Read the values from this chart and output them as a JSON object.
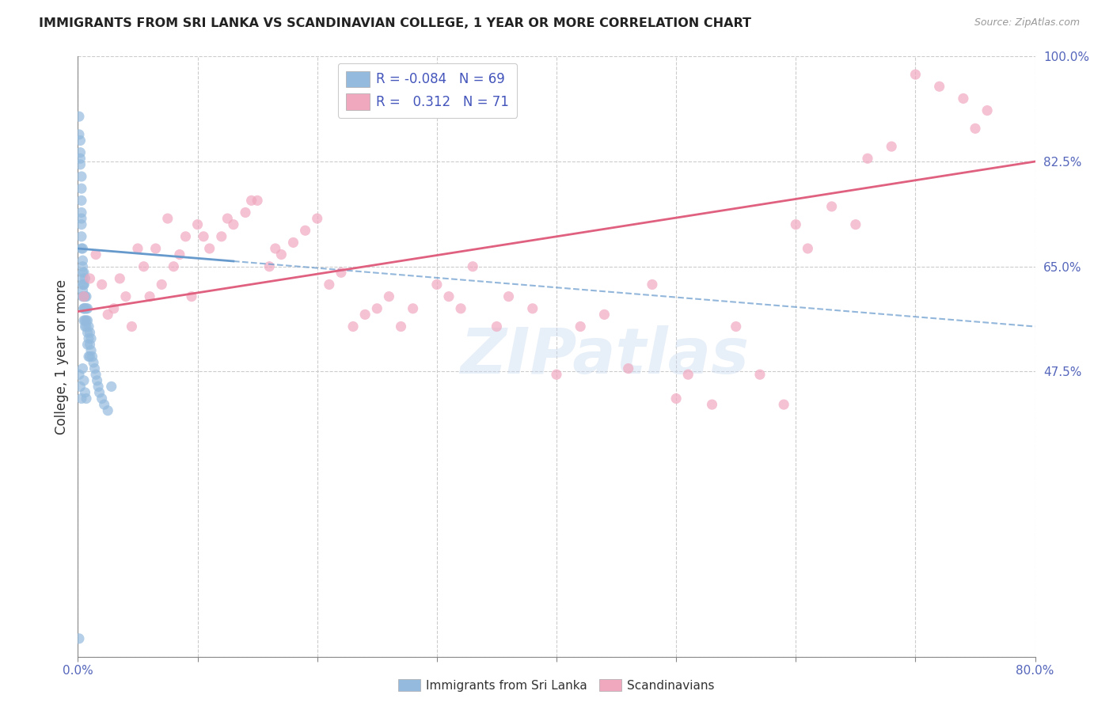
{
  "title": "IMMIGRANTS FROM SRI LANKA VS SCANDINAVIAN COLLEGE, 1 YEAR OR MORE CORRELATION CHART",
  "source": "Source: ZipAtlas.com",
  "ylabel": "College, 1 year or more",
  "xlim": [
    0.0,
    0.8
  ],
  "ylim": [
    0.0,
    1.0
  ],
  "xtick_values": [
    0.0,
    0.1,
    0.2,
    0.3,
    0.4,
    0.5,
    0.6,
    0.7,
    0.8
  ],
  "xticklabels": [
    "0.0%",
    "",
    "",
    "",
    "",
    "",
    "",
    "",
    "80.0%"
  ],
  "ytick_values": [
    0.0,
    0.475,
    0.65,
    0.825,
    1.0
  ],
  "ytick_labels": [
    "",
    "47.5%",
    "65.0%",
    "82.5%",
    "100.0%"
  ],
  "watermark": "ZIPatlas",
  "sri_lanka_color": "#94bbde",
  "scandinavian_color": "#f0a8bf",
  "trend_sri_lanka_color": "#6699cc",
  "trend_scandinavian_color": "#e06080",
  "background_color": "#ffffff",
  "grid_color": "#cccccc",
  "legend_sl_label": "R = -0.084   N = 69",
  "legend_sc_label": "R =   0.312   N = 71",
  "legend_text_color": "#4455bb",
  "tick_color": "#5566bb",
  "bottom_label_sl": "Immigrants from Sri Lanka",
  "bottom_label_sc": "Scandinavians",
  "sl_x": [
    0.001,
    0.001,
    0.002,
    0.002,
    0.002,
    0.002,
    0.003,
    0.003,
    0.003,
    0.003,
    0.003,
    0.003,
    0.003,
    0.003,
    0.004,
    0.004,
    0.004,
    0.004,
    0.004,
    0.004,
    0.004,
    0.004,
    0.005,
    0.005,
    0.005,
    0.005,
    0.005,
    0.005,
    0.005,
    0.006,
    0.006,
    0.006,
    0.006,
    0.006,
    0.007,
    0.007,
    0.007,
    0.007,
    0.008,
    0.008,
    0.008,
    0.008,
    0.009,
    0.009,
    0.009,
    0.01,
    0.01,
    0.01,
    0.011,
    0.011,
    0.012,
    0.013,
    0.014,
    0.015,
    0.016,
    0.017,
    0.018,
    0.02,
    0.022,
    0.025,
    0.001,
    0.002,
    0.003,
    0.004,
    0.005,
    0.006,
    0.007,
    0.028,
    0.001
  ],
  "sl_y": [
    0.9,
    0.87,
    0.84,
    0.82,
    0.86,
    0.83,
    0.8,
    0.78,
    0.76,
    0.74,
    0.72,
    0.7,
    0.68,
    0.73,
    0.68,
    0.66,
    0.64,
    0.62,
    0.6,
    0.65,
    0.63,
    0.61,
    0.58,
    0.62,
    0.6,
    0.58,
    0.56,
    0.64,
    0.62,
    0.55,
    0.6,
    0.58,
    0.56,
    0.63,
    0.55,
    0.58,
    0.56,
    0.6,
    0.54,
    0.56,
    0.58,
    0.52,
    0.53,
    0.55,
    0.5,
    0.52,
    0.5,
    0.54,
    0.51,
    0.53,
    0.5,
    0.49,
    0.48,
    0.47,
    0.46,
    0.45,
    0.44,
    0.43,
    0.42,
    0.41,
    0.47,
    0.45,
    0.43,
    0.48,
    0.46,
    0.44,
    0.43,
    0.45,
    0.03
  ],
  "sc_x": [
    0.005,
    0.01,
    0.02,
    0.025,
    0.03,
    0.04,
    0.045,
    0.055,
    0.06,
    0.065,
    0.07,
    0.08,
    0.09,
    0.095,
    0.1,
    0.11,
    0.12,
    0.13,
    0.14,
    0.15,
    0.16,
    0.17,
    0.18,
    0.19,
    0.2,
    0.21,
    0.22,
    0.23,
    0.24,
    0.25,
    0.26,
    0.27,
    0.28,
    0.3,
    0.31,
    0.32,
    0.33,
    0.35,
    0.36,
    0.38,
    0.4,
    0.42,
    0.44,
    0.46,
    0.48,
    0.5,
    0.51,
    0.53,
    0.55,
    0.57,
    0.59,
    0.6,
    0.61,
    0.63,
    0.65,
    0.66,
    0.68,
    0.7,
    0.72,
    0.74,
    0.76,
    0.015,
    0.035,
    0.05,
    0.075,
    0.085,
    0.105,
    0.125,
    0.145,
    0.165,
    0.75
  ],
  "sc_y": [
    0.6,
    0.63,
    0.62,
    0.57,
    0.58,
    0.6,
    0.55,
    0.65,
    0.6,
    0.68,
    0.62,
    0.65,
    0.7,
    0.6,
    0.72,
    0.68,
    0.7,
    0.72,
    0.74,
    0.76,
    0.65,
    0.67,
    0.69,
    0.71,
    0.73,
    0.62,
    0.64,
    0.55,
    0.57,
    0.58,
    0.6,
    0.55,
    0.58,
    0.62,
    0.6,
    0.58,
    0.65,
    0.55,
    0.6,
    0.58,
    0.47,
    0.55,
    0.57,
    0.48,
    0.62,
    0.43,
    0.47,
    0.42,
    0.55,
    0.47,
    0.42,
    0.72,
    0.68,
    0.75,
    0.72,
    0.83,
    0.85,
    0.97,
    0.95,
    0.93,
    0.91,
    0.67,
    0.63,
    0.68,
    0.73,
    0.67,
    0.7,
    0.73,
    0.76,
    0.68,
    0.88
  ],
  "sl_trend_x0": 0.0,
  "sl_trend_x1": 0.8,
  "sl_trend_y0": 0.68,
  "sl_trend_y1": 0.55,
  "sc_trend_x0": 0.0,
  "sc_trend_x1": 0.8,
  "sc_trend_y0": 0.575,
  "sc_trend_y1": 0.825
}
